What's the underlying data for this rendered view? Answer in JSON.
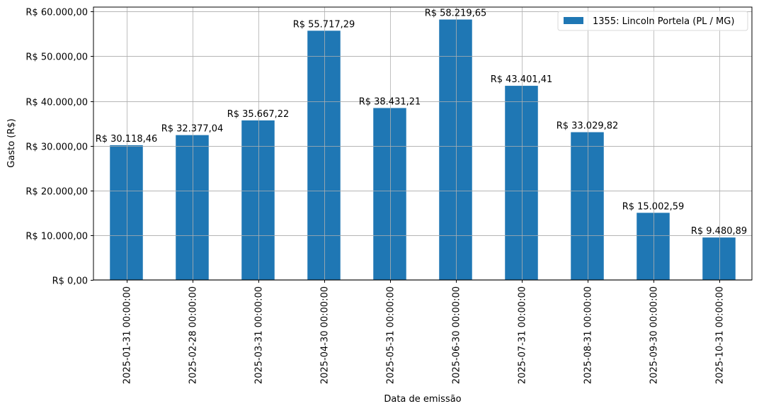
{
  "chart_data": {
    "type": "bar",
    "title": "",
    "xlabel": "Data de emissão",
    "ylabel": "Gasto (R$)",
    "ylim": [
      0,
      61000
    ],
    "grid": true,
    "legend_position": "upper right",
    "series": [
      {
        "name": "1355: Lincoln Portela (PL / MG)",
        "color": "#1f77b4",
        "values": [
          30118.46,
          32377.04,
          35667.22,
          55717.29,
          38431.21,
          58219.65,
          43401.41,
          33029.82,
          15002.59,
          9480.89
        ]
      }
    ],
    "categories": [
      "2025-01-31 00:00:00",
      "2025-02-28 00:00:00",
      "2025-03-31 00:00:00",
      "2025-04-30 00:00:00",
      "2025-05-31 00:00:00",
      "2025-06-30 00:00:00",
      "2025-07-31 00:00:00",
      "2025-08-31 00:00:00",
      "2025-09-30 00:00:00",
      "2025-10-31 00:00:00"
    ],
    "bar_labels": [
      "R$ 30.118,46",
      "R$ 32.377,04",
      "R$ 35.667,22",
      "R$ 55.717,29",
      "R$ 38.431,21",
      "R$ 58.219,65",
      "R$ 43.401,41",
      "R$ 33.029,82",
      "R$ 15.002,59",
      "R$ 9.480,89"
    ],
    "y_ticks": [
      0,
      10000,
      20000,
      30000,
      40000,
      50000,
      60000
    ],
    "y_tick_labels": [
      "R$ 0,00",
      "R$ 10.000,00",
      "R$ 20.000,00",
      "R$ 30.000,00",
      "R$ 40.000,00",
      "R$ 50.000,00",
      "R$ 60.000,00"
    ]
  },
  "legend": {
    "label": "1355: Lincoln Portela (PL / MG)"
  }
}
